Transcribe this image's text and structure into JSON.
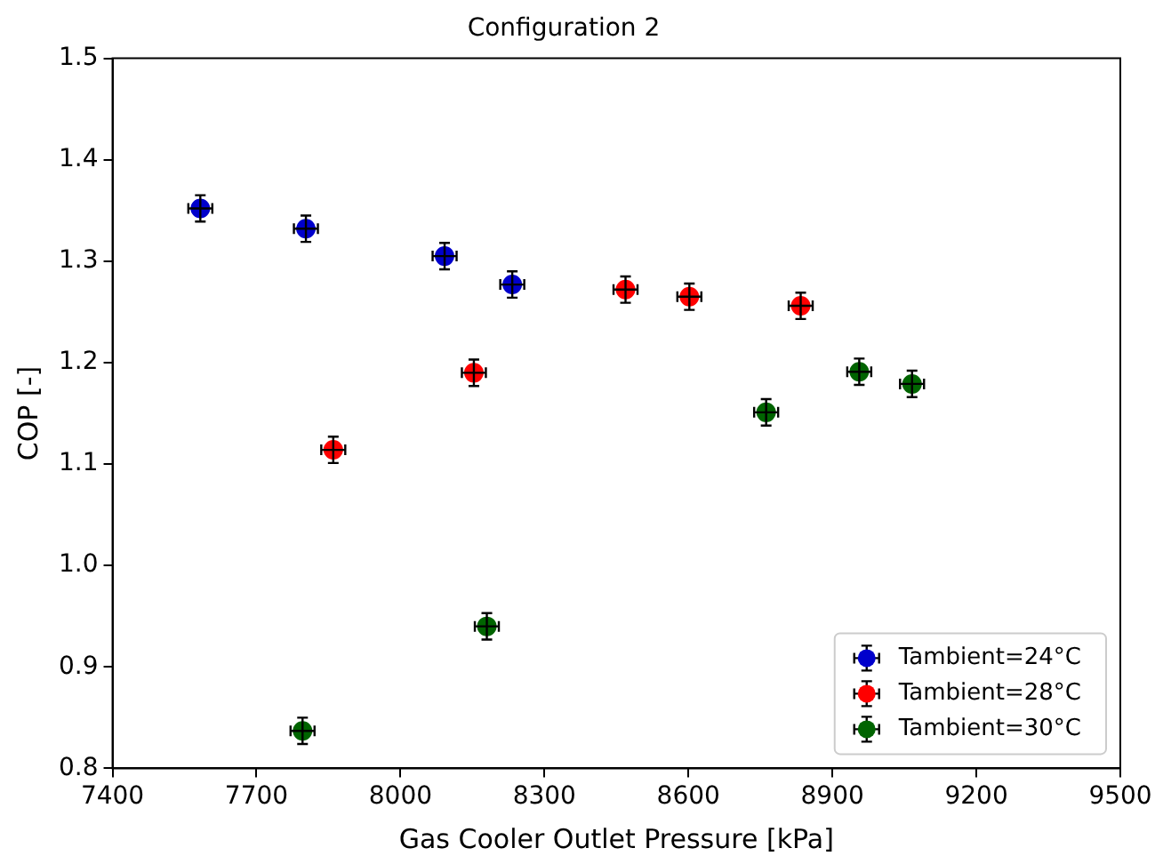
{
  "chart_data": {
    "type": "scatter",
    "title": "Configuration 2",
    "xlabel": "Gas Cooler Outlet Pressure [kPa]",
    "ylabel": "COP [-]",
    "xlim": [
      7400,
      9500
    ],
    "xticks": [
      7400,
      7700,
      8000,
      8300,
      8600,
      8900,
      9200,
      9500
    ],
    "ylim": [
      0.8,
      1.5
    ],
    "yticks": [
      0.8,
      0.9,
      {
        "value": 1,
        "label": "1.0"
      },
      1.1,
      1.2,
      1.3,
      1.4,
      1.5
    ],
    "grid": false,
    "legend": "bottom right",
    "marker": "circle",
    "series": [
      {
        "name": "Tambient=24°C",
        "color": "#0000cc",
        "x": [
          7583,
          7803,
          8092,
          8233
        ],
        "values": [
          1.352,
          1.332,
          1.305,
          1.277
        ],
        "errors": [
          0.013,
          0.013,
          0.013,
          0.013
        ],
        "xerrors": [
          25,
          25,
          25,
          25
        ]
      },
      {
        "name": "Tambient=28°C",
        "color": "#ff0000",
        "x": [
          7860,
          8153,
          8469,
          8602,
          8834
        ],
        "values": [
          1.114,
          1.19,
          1.272,
          1.265,
          1.256
        ],
        "errors": [
          0.013,
          0.013,
          0.013,
          0.013,
          0.013
        ],
        "xerrors": [
          25,
          25,
          25,
          25,
          25
        ]
      },
      {
        "name": "Tambient=30°C",
        "color": "#006400",
        "x": [
          7796,
          8180,
          8762,
          8956,
          9066
        ],
        "values": [
          0.837,
          0.94,
          1.151,
          1.191,
          1.179
        ],
        "errors": [
          0.013,
          0.013,
          0.013,
          0.013,
          0.013
        ],
        "xerrors": [
          25,
          25,
          25,
          25,
          25
        ]
      }
    ]
  }
}
